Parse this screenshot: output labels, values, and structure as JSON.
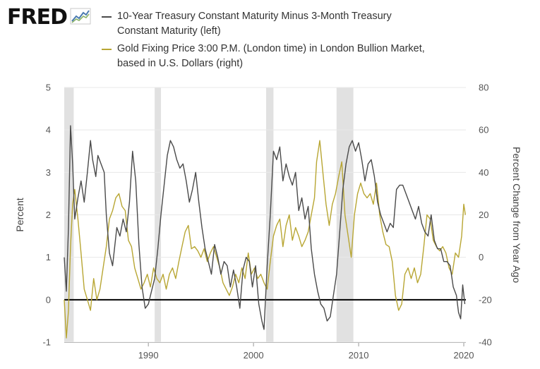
{
  "header": {
    "logo_text": "FRED",
    "logo_icon": "line-chart-icon"
  },
  "colors": {
    "spread": "#4a4a4a",
    "gold": "#b8a633",
    "recession": "#e1e1e1",
    "zero_line": "#000000",
    "grid": "#e8e8e8",
    "text": "#333333"
  },
  "chart_data": {
    "type": "line",
    "title": "",
    "xlabel": "",
    "left_axis": {
      "label": "Percent",
      "ylim": [
        -1,
        5
      ],
      "ticks": [
        "-1",
        "0",
        "1",
        "2",
        "3",
        "4",
        "5"
      ]
    },
    "right_axis": {
      "label": "Percent Change from Year Ago",
      "ylim": [
        -40,
        80
      ],
      "ticks": [
        "-40",
        "-20",
        "0",
        "20",
        "40",
        "60",
        "80"
      ]
    },
    "x_axis": {
      "xlim": [
        1982.0,
        2020.2
      ],
      "ticks": [
        1990,
        2000,
        2010,
        2020
      ],
      "tick_labels": [
        "1990",
        "2000",
        "2010",
        "2020"
      ]
    },
    "reference_line": {
      "axis": "left",
      "value": 0
    },
    "recessions": [
      [
        1981.6,
        1982.9
      ],
      [
        1990.6,
        1991.2
      ],
      [
        2001.2,
        2001.9
      ],
      [
        2007.9,
        2009.5
      ]
    ],
    "series": [
      {
        "name": "10-Year Treasury Constant Maturity Minus 3-Month Treasury Constant Maturity (left)",
        "axis": "left",
        "x": [
          1982.0,
          1982.2,
          1982.4,
          1982.6,
          1982.8,
          1983.0,
          1983.3,
          1983.6,
          1983.9,
          1984.2,
          1984.5,
          1984.7,
          1985.0,
          1985.2,
          1985.5,
          1985.8,
          1986.0,
          1986.3,
          1986.6,
          1987.0,
          1987.3,
          1987.6,
          1987.9,
          1988.2,
          1988.5,
          1988.8,
          1989.1,
          1989.4,
          1989.7,
          1990.0,
          1990.3,
          1990.6,
          1990.9,
          1991.2,
          1991.5,
          1991.8,
          1992.1,
          1992.4,
          1992.7,
          1993.0,
          1993.3,
          1993.6,
          1993.9,
          1994.2,
          1994.5,
          1994.8,
          1995.1,
          1995.4,
          1995.7,
          1996.0,
          1996.3,
          1996.6,
          1996.9,
          1997.2,
          1997.5,
          1997.8,
          1998.1,
          1998.4,
          1998.7,
          1999.0,
          1999.3,
          1999.6,
          1999.9,
          2000.2,
          2000.5,
          2000.8,
          2001.0,
          2001.3,
          2001.6,
          2001.9,
          2002.2,
          2002.5,
          2002.8,
          2003.1,
          2003.4,
          2003.7,
          2004.0,
          2004.3,
          2004.6,
          2004.9,
          2005.2,
          2005.5,
          2005.8,
          2006.1,
          2006.4,
          2006.7,
          2007.0,
          2007.3,
          2007.6,
          2007.9,
          2008.2,
          2008.5,
          2008.8,
          2009.1,
          2009.4,
          2009.7,
          2010.0,
          2010.3,
          2010.6,
          2010.9,
          2011.2,
          2011.5,
          2011.8,
          2012.1,
          2012.4,
          2012.7,
          2013.0,
          2013.3,
          2013.6,
          2013.9,
          2014.2,
          2014.5,
          2014.8,
          2015.1,
          2015.4,
          2015.7,
          2016.0,
          2016.3,
          2016.6,
          2016.9,
          2017.2,
          2017.5,
          2017.8,
          2018.1,
          2018.4,
          2018.7,
          2019.0,
          2019.3,
          2019.5,
          2019.7,
          2019.9,
          2020.1
        ],
        "values": [
          1.0,
          0.2,
          1.7,
          4.1,
          3.2,
          1.9,
          2.4,
          2.8,
          2.3,
          3.0,
          3.75,
          3.3,
          2.9,
          3.4,
          3.2,
          3.0,
          2.0,
          1.1,
          0.8,
          1.7,
          1.5,
          1.9,
          1.6,
          2.3,
          3.5,
          2.8,
          1.3,
          0.3,
          -0.2,
          -0.1,
          0.2,
          0.5,
          1.2,
          2.0,
          2.7,
          3.4,
          3.75,
          3.6,
          3.3,
          3.1,
          3.2,
          2.8,
          2.3,
          2.6,
          3.0,
          2.3,
          1.7,
          1.2,
          0.9,
          0.6,
          1.3,
          1.0,
          0.6,
          0.9,
          0.8,
          0.3,
          0.7,
          0.3,
          -0.2,
          0.7,
          1.0,
          0.9,
          0.3,
          0.8,
          -0.1,
          -0.5,
          -0.7,
          0.8,
          2.0,
          3.5,
          3.3,
          3.6,
          2.8,
          3.2,
          2.9,
          2.7,
          3.0,
          2.1,
          2.4,
          1.9,
          2.2,
          1.2,
          0.6,
          0.2,
          -0.1,
          -0.2,
          -0.5,
          -0.4,
          0.1,
          0.6,
          1.6,
          2.6,
          3.2,
          3.6,
          3.75,
          3.5,
          3.7,
          3.3,
          2.8,
          3.2,
          3.3,
          2.9,
          2.3,
          2.0,
          1.8,
          1.6,
          1.8,
          1.7,
          2.6,
          2.7,
          2.7,
          2.5,
          2.3,
          2.1,
          1.9,
          2.2,
          1.8,
          1.6,
          1.5,
          2.0,
          1.4,
          1.2,
          1.2,
          0.9,
          0.9,
          0.8,
          0.3,
          0.1,
          -0.3,
          -0.45,
          0.35,
          -0.1
        ]
      },
      {
        "name": "Gold Fixing Price 3:00 P.M. (London time) in London Bullion Market, based in U.S. Dollars (right)",
        "axis": "right",
        "x": [
          1982.0,
          1982.2,
          1982.4,
          1982.6,
          1982.8,
          1983.0,
          1983.3,
          1983.6,
          1983.9,
          1984.2,
          1984.5,
          1984.8,
          1985.1,
          1985.4,
          1985.7,
          1986.0,
          1986.3,
          1986.6,
          1986.9,
          1987.2,
          1987.5,
          1987.8,
          1988.1,
          1988.4,
          1988.7,
          1989.0,
          1989.3,
          1989.6,
          1989.9,
          1990.2,
          1990.5,
          1990.8,
          1991.1,
          1991.4,
          1991.7,
          1992.0,
          1992.3,
          1992.6,
          1992.9,
          1993.2,
          1993.5,
          1993.8,
          1994.1,
          1994.4,
          1994.7,
          1995.0,
          1995.3,
          1995.6,
          1995.9,
          1996.2,
          1996.5,
          1996.8,
          1997.1,
          1997.4,
          1997.7,
          1998.0,
          1998.3,
          1998.6,
          1998.9,
          1999.2,
          1999.5,
          1999.8,
          2000.1,
          2000.4,
          2000.7,
          2001.0,
          2001.3,
          2001.6,
          2001.9,
          2002.2,
          2002.5,
          2002.8,
          2003.1,
          2003.4,
          2003.7,
          2004.0,
          2004.3,
          2004.6,
          2004.9,
          2005.2,
          2005.5,
          2005.8,
          2006.0,
          2006.3,
          2006.6,
          2006.9,
          2007.2,
          2007.5,
          2007.8,
          2008.1,
          2008.4,
          2008.7,
          2009.0,
          2009.3,
          2009.6,
          2009.9,
          2010.2,
          2010.5,
          2010.8,
          2011.1,
          2011.4,
          2011.7,
          2012.0,
          2012.3,
          2012.6,
          2012.9,
          2013.2,
          2013.5,
          2013.8,
          2014.1,
          2014.4,
          2014.7,
          2015.0,
          2015.3,
          2015.6,
          2015.9,
          2016.2,
          2016.5,
          2016.8,
          2017.1,
          2017.4,
          2017.7,
          2018.0,
          2018.3,
          2018.6,
          2018.9,
          2019.2,
          2019.5,
          2019.8,
          2020.0,
          2020.15
        ],
        "values": [
          -20,
          -38,
          -25,
          5,
          25,
          32,
          18,
          2,
          -15,
          -20,
          -25,
          -10,
          -20,
          -15,
          -5,
          5,
          18,
          22,
          28,
          30,
          24,
          22,
          8,
          5,
          -5,
          -10,
          -15,
          -12,
          -8,
          -14,
          -5,
          -10,
          -12,
          -8,
          -15,
          -8,
          -5,
          -10,
          -2,
          5,
          12,
          15,
          4,
          5,
          3,
          0,
          4,
          -2,
          2,
          5,
          0,
          -5,
          -12,
          -15,
          -18,
          -14,
          -8,
          -12,
          -5,
          -10,
          2,
          -8,
          -5,
          -10,
          -8,
          -12,
          -15,
          -2,
          10,
          15,
          18,
          5,
          15,
          20,
          8,
          14,
          10,
          5,
          8,
          12,
          20,
          28,
          45,
          55,
          40,
          25,
          15,
          25,
          30,
          38,
          45,
          20,
          10,
          0,
          20,
          30,
          35,
          30,
          28,
          30,
          25,
          35,
          20,
          12,
          6,
          5,
          -2,
          -18,
          -25,
          -22,
          -8,
          -5,
          -10,
          -5,
          -12,
          -8,
          5,
          20,
          18,
          8,
          5,
          3,
          5,
          2,
          -5,
          -8,
          2,
          0,
          10,
          25,
          20
        ]
      }
    ]
  },
  "legend": [
    {
      "line1": "10-Year Treasury Constant Maturity Minus 3-Month Treasury",
      "line2": "Constant Maturity (left)"
    },
    {
      "line1": "Gold Fixing Price 3:00 P.M. (London time) in London Bullion Market,",
      "line2": "based in U.S. Dollars (right)"
    }
  ]
}
